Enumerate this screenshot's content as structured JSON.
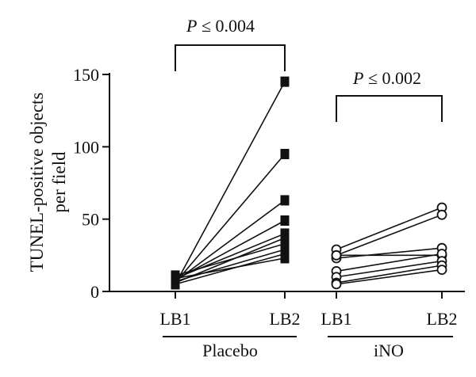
{
  "chart_data": {
    "type": "scatter",
    "ylabel": "TUNEL-positive objects per field",
    "ylim": [
      0,
      150
    ],
    "yticks": [
      0,
      50,
      100,
      150
    ],
    "groups": [
      {
        "name": "Placebo",
        "categories": [
          "LB1",
          "LB2"
        ],
        "marker": "square",
        "marker_fill": "#111111",
        "p_annotation": "P ≤ 0.004",
        "pairs": [
          [
            5,
            145
          ],
          [
            6,
            95
          ],
          [
            7,
            63
          ],
          [
            8,
            49
          ],
          [
            9,
            40
          ],
          [
            6,
            37
          ],
          [
            11,
            33
          ],
          [
            7,
            29
          ],
          [
            5,
            26
          ],
          [
            9,
            23
          ]
        ]
      },
      {
        "name": "iNO",
        "categories": [
          "LB1",
          "LB2"
        ],
        "marker": "circle",
        "marker_fill": "#ffffff",
        "p_annotation": "P ≤ 0.002",
        "pairs": [
          [
            29,
            58
          ],
          [
            25,
            53
          ],
          [
            23,
            30
          ],
          [
            25,
            25
          ],
          [
            14,
            26
          ],
          [
            10,
            21
          ],
          [
            6,
            18
          ],
          [
            5,
            15
          ]
        ]
      }
    ]
  }
}
